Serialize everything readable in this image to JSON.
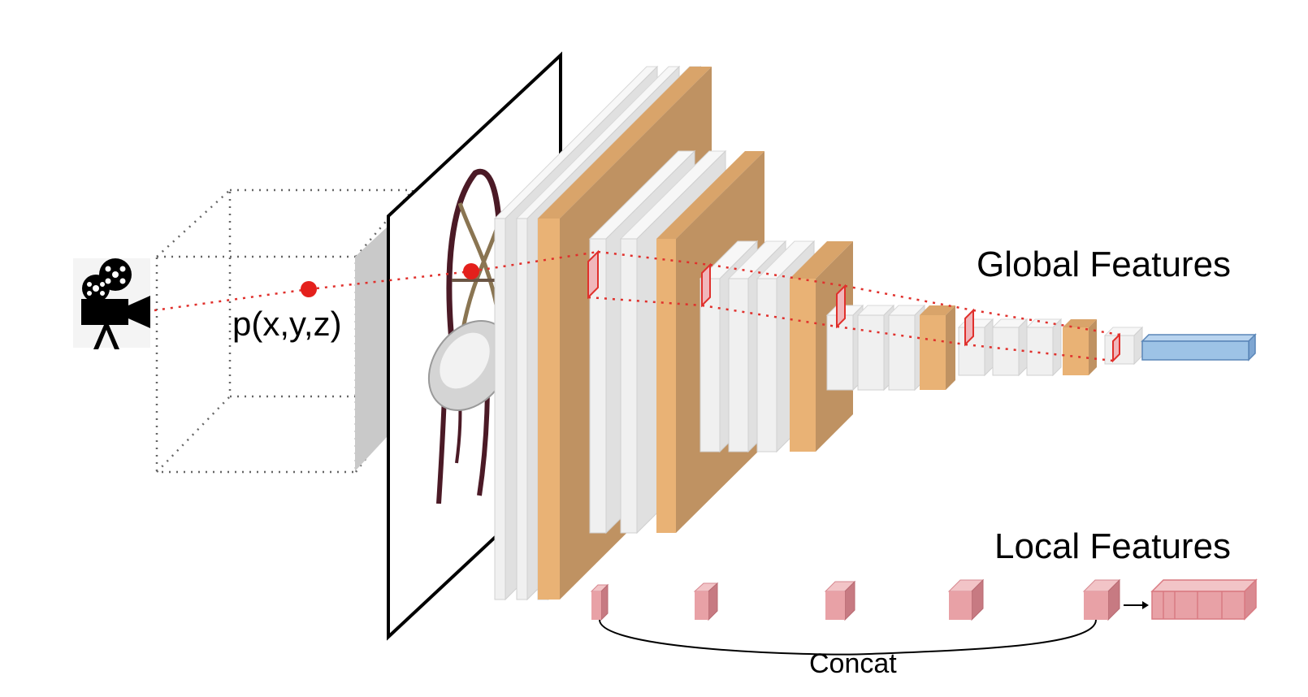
{
  "labels": {
    "point": "p(x,y,z)",
    "global_features": "Global Features",
    "local_features": "Local Features",
    "concat": "Concat"
  },
  "icons": {
    "camera": "movie-camera-icon",
    "object": "chair-image"
  },
  "colors": {
    "conv_layer": "#f0f0f0",
    "pool_layer": "#e9b275",
    "pool_side": "#bf9262",
    "global_vector": "#9dc3e6",
    "local_feature": "#e8a1a6",
    "ray": "#e0302c",
    "point": "#e4201c"
  }
}
